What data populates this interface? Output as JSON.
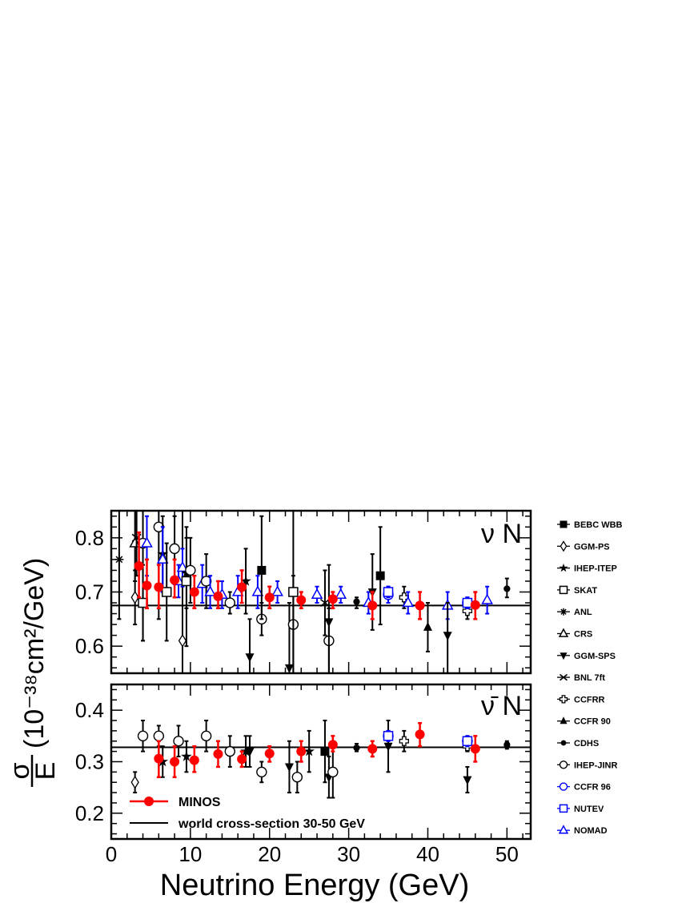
{
  "chart_data": {
    "type": "scatter",
    "xlabel": "Neutrino Energy (GeV)",
    "ylabel": {
      "frac_top": "σ",
      "frac_bottom": "E",
      "unit": "(10⁻³⁸cm²/GeV)"
    },
    "xlim": [
      0,
      53
    ],
    "x_ticks": [
      0,
      10,
      20,
      30,
      40,
      50
    ],
    "panels": [
      {
        "id": "nu",
        "label": "ν N",
        "ylim": [
          0.55,
          0.85
        ],
        "y_ticks": [
          0.6,
          0.7,
          0.8
        ],
        "world_average": 0.675,
        "points": [
          {
            "exp": "ANL",
            "x": 1.0,
            "y": 0.76,
            "lo": 0.65,
            "hi": 0.87
          },
          {
            "exp": "GGM-PS",
            "x": 3.0,
            "y": 0.69,
            "lo": 0.64,
            "hi": 0.74
          },
          {
            "exp": "CRS",
            "x": 3.0,
            "y": 0.79,
            "lo": 0.72,
            "hi": 0.86
          },
          {
            "exp": "BNL 7ft",
            "x": 3.2,
            "y": 0.8,
            "lo": 0.73,
            "hi": 0.87
          },
          {
            "exp": "MINOS",
            "x": 3.5,
            "y": 0.748,
            "lo": 0.69,
            "hi": 0.81
          },
          {
            "exp": "IHEP-JINR",
            "x": 4.0,
            "y": 0.79,
            "lo": 0.61,
            "hi": 0.85
          },
          {
            "exp": "SKAT",
            "x": 4.0,
            "y": 0.68,
            "lo": 0.61,
            "hi": 0.75
          },
          {
            "exp": "NOMAD",
            "x": 4.5,
            "y": 0.79,
            "lo": 0.73,
            "hi": 0.84
          },
          {
            "exp": "MINOS",
            "x": 4.5,
            "y": 0.712,
            "lo": 0.67,
            "hi": 0.76
          },
          {
            "exp": "IHEP-JINR",
            "x": 6.0,
            "y": 0.82,
            "lo": 0.65,
            "hi": 0.85
          },
          {
            "exp": "MINOS",
            "x": 6.0,
            "y": 0.709,
            "lo": 0.67,
            "hi": 0.75
          },
          {
            "exp": "IHEP-ITEP",
            "x": 6.5,
            "y": 0.77,
            "lo": 0.7,
            "hi": 0.84
          },
          {
            "exp": "NOMAD",
            "x": 6.5,
            "y": 0.76,
            "lo": 0.7,
            "hi": 0.82
          },
          {
            "exp": "SKAT",
            "x": 7.0,
            "y": 0.7,
            "lo": 0.61,
            "hi": 0.79
          },
          {
            "exp": "IHEP-JINR",
            "x": 8.0,
            "y": 0.78,
            "lo": 0.72,
            "hi": 0.84
          },
          {
            "exp": "MINOS",
            "x": 8.0,
            "y": 0.722,
            "lo": 0.69,
            "hi": 0.76
          },
          {
            "exp": "NOMAD",
            "x": 8.5,
            "y": 0.72,
            "lo": 0.69,
            "hi": 0.75
          },
          {
            "exp": "GGM-PS",
            "x": 9.0,
            "y": 0.61,
            "lo": 0.55,
            "hi": 0.85
          },
          {
            "exp": "NOMAD",
            "x": 9.0,
            "y": 0.745,
            "lo": 0.71,
            "hi": 0.78
          },
          {
            "exp": "IHEP-ITEP",
            "x": 9.5,
            "y": 0.735,
            "lo": 0.67,
            "hi": 0.8
          },
          {
            "exp": "SKAT",
            "x": 9.5,
            "y": 0.72,
            "lo": 0.6,
            "hi": 0.82
          },
          {
            "exp": "IHEP-JINR",
            "x": 10.0,
            "y": 0.74,
            "lo": 0.68,
            "hi": 0.8
          },
          {
            "exp": "MINOS",
            "x": 10.5,
            "y": 0.7,
            "lo": 0.67,
            "hi": 0.73
          },
          {
            "exp": "NOMAD",
            "x": 11.5,
            "y": 0.715,
            "lo": 0.68,
            "hi": 0.75
          },
          {
            "exp": "IHEP-JINR",
            "x": 12.0,
            "y": 0.72,
            "lo": 0.67,
            "hi": 0.77
          },
          {
            "exp": "NOMAD",
            "x": 12.5,
            "y": 0.7,
            "lo": 0.67,
            "hi": 0.73
          },
          {
            "exp": "MINOS",
            "x": 13.5,
            "y": 0.692,
            "lo": 0.67,
            "hi": 0.72
          },
          {
            "exp": "NOMAD",
            "x": 14.0,
            "y": 0.695,
            "lo": 0.67,
            "hi": 0.72
          },
          {
            "exp": "IHEP-JINR",
            "x": 15.0,
            "y": 0.68,
            "lo": 0.66,
            "hi": 0.7
          },
          {
            "exp": "NOMAD",
            "x": 16.0,
            "y": 0.7,
            "lo": 0.67,
            "hi": 0.73
          },
          {
            "exp": "MINOS",
            "x": 16.5,
            "y": 0.709,
            "lo": 0.68,
            "hi": 0.74
          },
          {
            "exp": "IHEP-ITEP",
            "x": 17.0,
            "y": 0.72,
            "lo": 0.66,
            "hi": 0.78
          },
          {
            "exp": "GGM-SPS",
            "x": 17.5,
            "y": 0.58,
            "lo": 0.55,
            "hi": 0.65
          },
          {
            "exp": "NOMAD",
            "x": 18.5,
            "y": 0.7,
            "lo": 0.67,
            "hi": 0.73
          },
          {
            "exp": "IHEP-JINR",
            "x": 19.0,
            "y": 0.65,
            "lo": 0.62,
            "hi": 0.68
          },
          {
            "exp": "BEBC WBB",
            "x": 19.0,
            "y": 0.74,
            "lo": 0.65,
            "hi": 0.84
          },
          {
            "exp": "MINOS",
            "x": 20.0,
            "y": 0.69,
            "lo": 0.67,
            "hi": 0.71
          },
          {
            "exp": "NOMAD",
            "x": 21.0,
            "y": 0.7,
            "lo": 0.68,
            "hi": 0.72
          },
          {
            "exp": "GGM-SPS",
            "x": 22.5,
            "y": 0.56,
            "lo": 0.55,
            "hi": 0.68
          },
          {
            "exp": "IHEP-JINR",
            "x": 23.0,
            "y": 0.64,
            "lo": 0.55,
            "hi": 0.73
          },
          {
            "exp": "SKAT",
            "x": 23.0,
            "y": 0.7,
            "lo": 0.55,
            "hi": 0.85
          },
          {
            "exp": "MINOS",
            "x": 24.0,
            "y": 0.685,
            "lo": 0.67,
            "hi": 0.7
          },
          {
            "exp": "NOMAD",
            "x": 26.0,
            "y": 0.695,
            "lo": 0.68,
            "hi": 0.71
          },
          {
            "exp": "BNL 7ft",
            "x": 27.0,
            "y": 0.68,
            "lo": 0.62,
            "hi": 0.74
          },
          {
            "exp": "IHEP-JINR",
            "x": 27.5,
            "y": 0.61,
            "lo": 0.55,
            "hi": 0.67
          },
          {
            "exp": "GGM-SPS",
            "x": 27.5,
            "y": 0.645,
            "lo": 0.55,
            "hi": 0.75
          },
          {
            "exp": "MINOS",
            "x": 28.0,
            "y": 0.687,
            "lo": 0.67,
            "hi": 0.7
          },
          {
            "exp": "NOMAD",
            "x": 29.0,
            "y": 0.695,
            "lo": 0.68,
            "hi": 0.71
          },
          {
            "exp": "CDHS",
            "x": 31.0,
            "y": 0.682,
            "lo": 0.67,
            "hi": 0.69
          },
          {
            "exp": "NOMAD",
            "x": 32.5,
            "y": 0.68,
            "lo": 0.66,
            "hi": 0.7
          },
          {
            "exp": "MINOS",
            "x": 33.0,
            "y": 0.675,
            "lo": 0.65,
            "hi": 0.7
          },
          {
            "exp": "GGM-SPS",
            "x": 33.0,
            "y": 0.7,
            "lo": 0.63,
            "hi": 0.77
          },
          {
            "exp": "BEBC WBB",
            "x": 34.0,
            "y": 0.73,
            "lo": 0.64,
            "hi": 0.82
          },
          {
            "exp": "CCFR 96",
            "x": 35.0,
            "y": 0.695,
            "lo": 0.68,
            "hi": 0.71
          },
          {
            "exp": "NUTEV",
            "x": 35.0,
            "y": 0.7,
            "lo": 0.69,
            "hi": 0.71
          },
          {
            "exp": "CCFRR",
            "x": 37.0,
            "y": 0.69,
            "lo": 0.67,
            "hi": 0.71
          },
          {
            "exp": "NOMAD",
            "x": 37.5,
            "y": 0.68,
            "lo": 0.66,
            "hi": 0.7
          },
          {
            "exp": "MINOS",
            "x": 39.0,
            "y": 0.675,
            "lo": 0.65,
            "hi": 0.7
          },
          {
            "exp": "CCFR 90",
            "x": 40.0,
            "y": 0.635,
            "lo": 0.59,
            "hi": 0.68
          },
          {
            "exp": "NOMAD",
            "x": 42.5,
            "y": 0.675,
            "lo": 0.65,
            "hi": 0.7
          },
          {
            "exp": "GGM-SPS",
            "x": 42.5,
            "y": 0.62,
            "lo": 0.55,
            "hi": 0.68
          },
          {
            "exp": "CCFRR",
            "x": 45.0,
            "y": 0.665,
            "lo": 0.65,
            "hi": 0.68
          },
          {
            "exp": "CCFR 96",
            "x": 45.0,
            "y": 0.68,
            "lo": 0.67,
            "hi": 0.69
          },
          {
            "exp": "NUTEV",
            "x": 45.0,
            "y": 0.68,
            "lo": 0.67,
            "hi": 0.69
          },
          {
            "exp": "MINOS",
            "x": 46.0,
            "y": 0.676,
            "lo": 0.65,
            "hi": 0.7
          },
          {
            "exp": "NOMAD",
            "x": 47.5,
            "y": 0.685,
            "lo": 0.66,
            "hi": 0.71
          },
          {
            "exp": "CDHS",
            "x": 50.0,
            "y": 0.706,
            "lo": 0.69,
            "hi": 0.725
          }
        ]
      },
      {
        "id": "nubar",
        "label": "ν̄ N",
        "ylim": [
          0.15,
          0.45
        ],
        "y_ticks": [
          0.2,
          0.3,
          0.4
        ],
        "world_average": 0.328,
        "points": [
          {
            "exp": "GGM-PS",
            "x": 3.0,
            "y": 0.26,
            "lo": 0.24,
            "hi": 0.28
          },
          {
            "exp": "IHEP-JINR",
            "x": 4.0,
            "y": 0.35,
            "lo": 0.32,
            "hi": 0.38
          },
          {
            "exp": "IHEP-JINR",
            "x": 6.0,
            "y": 0.35,
            "lo": 0.33,
            "hi": 0.37
          },
          {
            "exp": "MINOS",
            "x": 6.0,
            "y": 0.306,
            "lo": 0.27,
            "hi": 0.34
          },
          {
            "exp": "IHEP-ITEP",
            "x": 6.5,
            "y": 0.3,
            "lo": 0.27,
            "hi": 0.33
          },
          {
            "exp": "MINOS",
            "x": 8.0,
            "y": 0.3,
            "lo": 0.27,
            "hi": 0.33
          },
          {
            "exp": "IHEP-JINR",
            "x": 8.5,
            "y": 0.34,
            "lo": 0.31,
            "hi": 0.37
          },
          {
            "exp": "IHEP-ITEP",
            "x": 9.5,
            "y": 0.31,
            "lo": 0.28,
            "hi": 0.34
          },
          {
            "exp": "MINOS",
            "x": 10.5,
            "y": 0.303,
            "lo": 0.28,
            "hi": 0.33
          },
          {
            "exp": "IHEP-JINR",
            "x": 12.0,
            "y": 0.35,
            "lo": 0.32,
            "hi": 0.38
          },
          {
            "exp": "MINOS",
            "x": 13.5,
            "y": 0.315,
            "lo": 0.29,
            "hi": 0.34
          },
          {
            "exp": "IHEP-JINR",
            "x": 15.0,
            "y": 0.32,
            "lo": 0.29,
            "hi": 0.35
          },
          {
            "exp": "MINOS",
            "x": 16.5,
            "y": 0.305,
            "lo": 0.29,
            "hi": 0.32
          },
          {
            "exp": "IHEP-ITEP",
            "x": 17.0,
            "y": 0.32,
            "lo": 0.29,
            "hi": 0.35
          },
          {
            "exp": "GGM-SPS",
            "x": 17.5,
            "y": 0.32,
            "lo": 0.29,
            "hi": 0.35
          },
          {
            "exp": "IHEP-JINR",
            "x": 19.0,
            "y": 0.28,
            "lo": 0.26,
            "hi": 0.3
          },
          {
            "exp": "MINOS",
            "x": 20.0,
            "y": 0.316,
            "lo": 0.3,
            "hi": 0.33
          },
          {
            "exp": "GGM-SPS",
            "x": 22.5,
            "y": 0.29,
            "lo": 0.24,
            "hi": 0.34
          },
          {
            "exp": "IHEP-JINR",
            "x": 23.5,
            "y": 0.27,
            "lo": 0.24,
            "hi": 0.3
          },
          {
            "exp": "MINOS",
            "x": 24.0,
            "y": 0.32,
            "lo": 0.3,
            "hi": 0.34
          },
          {
            "exp": "IHEP-ITEP",
            "x": 25.0,
            "y": 0.32,
            "lo": 0.28,
            "hi": 0.36
          },
          {
            "exp": "BEBC WBB",
            "x": 27.0,
            "y": 0.32,
            "lo": 0.26,
            "hi": 0.38
          },
          {
            "exp": "GGM-SPS",
            "x": 27.5,
            "y": 0.27,
            "lo": 0.23,
            "hi": 0.31
          },
          {
            "exp": "IHEP-JINR",
            "x": 28.0,
            "y": 0.28,
            "lo": 0.23,
            "hi": 0.33
          },
          {
            "exp": "MINOS",
            "x": 28.0,
            "y": 0.333,
            "lo": 0.32,
            "hi": 0.35
          },
          {
            "exp": "CDHS",
            "x": 31.0,
            "y": 0.327,
            "lo": 0.32,
            "hi": 0.335
          },
          {
            "exp": "MINOS",
            "x": 33.0,
            "y": 0.325,
            "lo": 0.31,
            "hi": 0.34
          },
          {
            "exp": "GGM-SPS",
            "x": 35.0,
            "y": 0.33,
            "lo": 0.28,
            "hi": 0.38
          },
          {
            "exp": "CCFR 96",
            "x": 35.0,
            "y": 0.35,
            "lo": 0.34,
            "hi": 0.36
          },
          {
            "exp": "NUTEV",
            "x": 35.0,
            "y": 0.35,
            "lo": 0.34,
            "hi": 0.36
          },
          {
            "exp": "CCFRR",
            "x": 37.0,
            "y": 0.34,
            "lo": 0.32,
            "hi": 0.36
          },
          {
            "exp": "MINOS",
            "x": 39.0,
            "y": 0.353,
            "lo": 0.33,
            "hi": 0.375
          },
          {
            "exp": "GGM-SPS",
            "x": 45.0,
            "y": 0.265,
            "lo": 0.24,
            "hi": 0.29
          },
          {
            "exp": "CCFRR",
            "x": 45.0,
            "y": 0.33,
            "lo": 0.32,
            "hi": 0.34
          },
          {
            "exp": "CCFR 96",
            "x": 45.0,
            "y": 0.34,
            "lo": 0.33,
            "hi": 0.35
          },
          {
            "exp": "NUTEV",
            "x": 45.0,
            "y": 0.34,
            "lo": 0.33,
            "hi": 0.35
          },
          {
            "exp": "MINOS",
            "x": 46.0,
            "y": 0.325,
            "lo": 0.3,
            "hi": 0.35
          },
          {
            "exp": "CDHS",
            "x": 50.0,
            "y": 0.333,
            "lo": 0.325,
            "hi": 0.34
          }
        ]
      }
    ],
    "legend": {
      "placement": "right",
      "entries": [
        {
          "name": "BEBC WBB",
          "marker": "square-filled",
          "color": "#000000"
        },
        {
          "name": "GGM-PS",
          "marker": "diamond-open",
          "color": "#000000"
        },
        {
          "name": "IHEP-ITEP",
          "marker": "star-filled",
          "color": "#000000"
        },
        {
          "name": "SKAT",
          "marker": "square-open",
          "color": "#000000"
        },
        {
          "name": "ANL",
          "marker": "asterisk",
          "color": "#000000"
        },
        {
          "name": "CRS",
          "marker": "triangle-up-open",
          "color": "#000000"
        },
        {
          "name": "GGM-SPS",
          "marker": "triangle-down-filled",
          "color": "#000000"
        },
        {
          "name": "BNL 7ft",
          "marker": "x-cross",
          "color": "#000000"
        },
        {
          "name": "CCFRR",
          "marker": "cross-open",
          "color": "#000000"
        },
        {
          "name": "CCFR 90",
          "marker": "triangle-up-filled",
          "color": "#000000"
        },
        {
          "name": "CDHS",
          "marker": "circle-filled-small",
          "color": "#000000"
        },
        {
          "name": "IHEP-JINR",
          "marker": "circle-open",
          "color": "#000000"
        },
        {
          "name": "CCFR 96",
          "marker": "circle-open",
          "color": "#0000ff"
        },
        {
          "name": "NUTEV",
          "marker": "square-open",
          "color": "#0000ff"
        },
        {
          "name": "NOMAD",
          "marker": "triangle-up-open",
          "color": "#0000ff"
        }
      ]
    },
    "inset_legend": {
      "placement": "bottom-left of lower panel",
      "entries": [
        {
          "name": "MINOS",
          "marker": "circle-filled",
          "color": "#ff0000"
        },
        {
          "name": "world cross-section 30-50 GeV",
          "marker": "line",
          "color": "#000000"
        }
      ]
    }
  },
  "colors": {
    "minos": "#ff0000",
    "blue": "#0000ff",
    "black": "#000000"
  }
}
